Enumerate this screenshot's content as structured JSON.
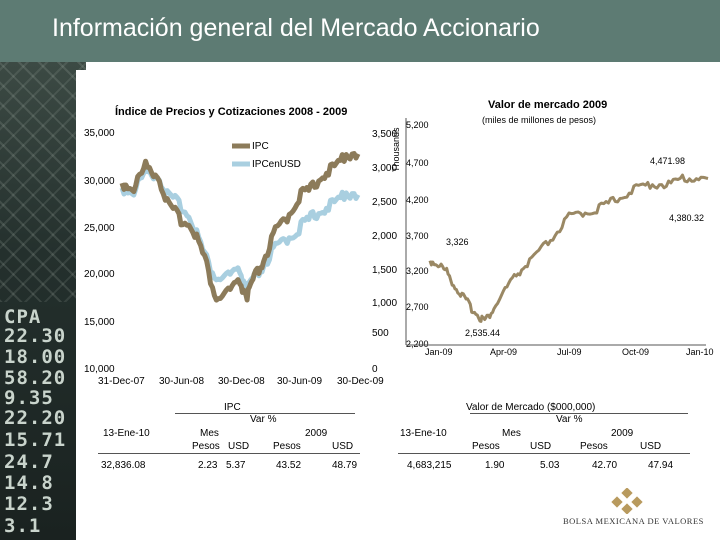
{
  "page": {
    "title": "Información general del Mercado Accionario"
  },
  "ticker_strip": [
    "CPA",
    "22.30",
    "18.00",
    "58.20",
    "9.35",
    "22.20",
    "15.71",
    "24.7",
    "14.8",
    "12.3",
    "3.1"
  ],
  "colors": {
    "ipc": "#8c7b5a",
    "ipc_usd": "#a9cfe0",
    "market_value": "#9a8864",
    "banner": "#5d7b73"
  },
  "chart_data": [
    {
      "type": "line",
      "title": "Índice de Precios y Cotizaciones 2008 - 2009",
      "legend": [
        "IPC",
        "IPCenUSD"
      ],
      "y_left_ticks": [
        "35,000",
        "30,000",
        "25,000",
        "20,000",
        "15,000",
        "10,000"
      ],
      "y_right_ticks": [
        "3,500",
        "3,000",
        "2,500",
        "2,000",
        "1,500",
        "1,000",
        "500",
        "0"
      ],
      "y_right_label": "",
      "x_ticks": [
        "31-Dec-07",
        "30-Jun-08",
        "30-Dec-08",
        "30-Jun-09",
        "30-Dec-09"
      ],
      "ylim_left": [
        10000,
        35000
      ],
      "ylim_right": [
        0,
        3500
      ],
      "series": [
        {
          "name": "IPC",
          "axis": "left",
          "x": [
            0,
            0.05,
            0.1,
            0.15,
            0.2,
            0.25,
            0.3,
            0.35,
            0.4,
            0.45,
            0.5,
            0.53,
            0.56,
            0.6,
            0.65,
            0.7,
            0.75,
            0.8,
            0.85,
            0.9,
            0.95,
            1.0
          ],
          "values": [
            29800,
            29300,
            31600,
            30800,
            27200,
            26000,
            25200,
            21800,
            17500,
            18300,
            19200,
            17800,
            19600,
            21600,
            24600,
            26200,
            28400,
            29100,
            30800,
            31300,
            33000,
            32900
          ]
        },
        {
          "name": "IPCenUSD",
          "axis": "right",
          "x": [
            0,
            0.05,
            0.1,
            0.15,
            0.2,
            0.25,
            0.3,
            0.35,
            0.4,
            0.45,
            0.5,
            0.53,
            0.56,
            0.6,
            0.65,
            0.7,
            0.75,
            0.8,
            0.85,
            0.9,
            0.95,
            1.0
          ],
          "values": [
            2700,
            2650,
            2950,
            2900,
            2550,
            2450,
            2200,
            1700,
            1350,
            1400,
            1450,
            1200,
            1350,
            1550,
            1800,
            1950,
            2100,
            2250,
            2400,
            2450,
            2650,
            2600
          ]
        }
      ]
    },
    {
      "type": "line",
      "title": "Valor de mercado 2009",
      "subtitle": "(miles de millones de pesos)",
      "y_label": "Thousands",
      "y_ticks": [
        "5,200",
        "4,700",
        "4,200",
        "3,700",
        "3,200",
        "2,700",
        "2,200"
      ],
      "x_ticks": [
        "Jan-09",
        "Apr-09",
        "Jul-09",
        "Oct-09",
        "Jan-10"
      ],
      "ylim": [
        2200,
        5200
      ],
      "annotations": [
        "4,471.98",
        "4,380.32",
        "3,326",
        "2,535.44"
      ],
      "series": [
        {
          "name": "Valor de mercado",
          "x": [
            0,
            0.03,
            0.06,
            0.09,
            0.12,
            0.15,
            0.18,
            0.2,
            0.23,
            0.27,
            0.31,
            0.35,
            0.4,
            0.45,
            0.5,
            0.55,
            0.6,
            0.65,
            0.7,
            0.75,
            0.8,
            0.85,
            0.9,
            0.95,
            1.0
          ],
          "values": [
            3350,
            3300,
            3200,
            3000,
            2850,
            2700,
            2580,
            2535,
            2700,
            2950,
            3150,
            3300,
            3500,
            3700,
            3950,
            4000,
            4050,
            4150,
            4250,
            4350,
            4400,
            4380,
            4460,
            4480,
            4470
          ]
        }
      ]
    }
  ],
  "table_ipc": {
    "title": "IPC",
    "group": "Var %",
    "row_label": "13-Ene-10",
    "col_mes": "Mes",
    "col_year": "2009",
    "subcols": [
      "Pesos",
      "USD",
      "Pesos",
      "USD"
    ],
    "value": "32,836.08",
    "values": [
      "2.23",
      "5.37",
      "43.52",
      "48.79"
    ]
  },
  "table_mv": {
    "title": "Valor de Mercado ($000,000)",
    "group": "Var %",
    "row_label": "13-Ene-10",
    "col_mes": "Mes",
    "col_year": "2009",
    "subcols": [
      "Pesos",
      "USD",
      "Pesos",
      "USD"
    ],
    "value": "4,683,215",
    "values": [
      "1.90",
      "5.03",
      "42.70",
      "47.94"
    ]
  },
  "logo": {
    "text": "BOLSA MEXICANA DE VALORES"
  }
}
